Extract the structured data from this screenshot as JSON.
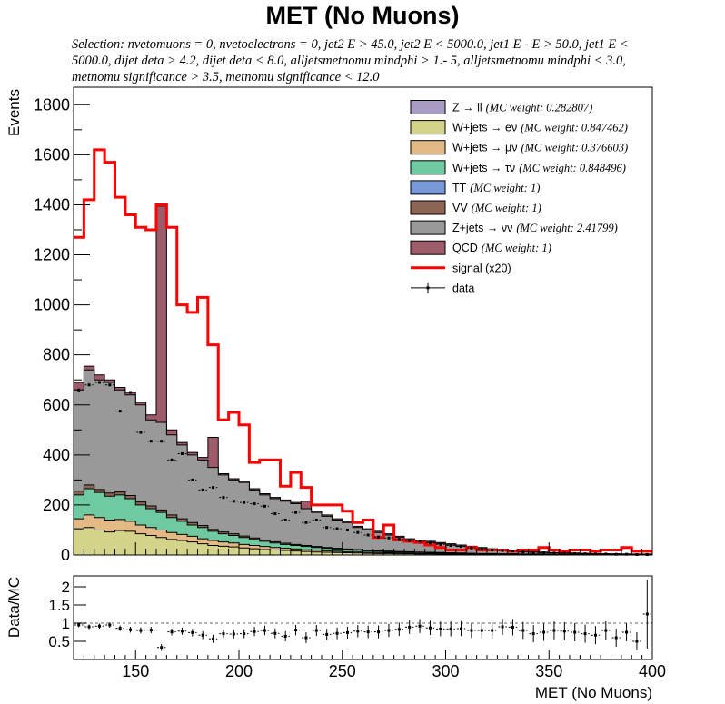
{
  "title": "MET (No Muons)",
  "selection_text": "Selection: nvetomuons = 0, nvetoelectrons = 0, jet2 E > 45.0, jet2 E < 5000.0, jet1 E - E > 50.0, jet1 E < 5000.0, dijet deta > 4.2, dijet deta < 8.0, alljetsmetnomu mindphi > 1.- 5, alljetsmetnomu mindphi < 3.0, metnomu significance > 3.5, metnomu significance < 12.0",
  "chart_data": [
    {
      "type": "stacked-histogram",
      "title": "MET (No Muons)",
      "xlabel": "",
      "ylabel": "Events",
      "xlim": [
        120,
        400
      ],
      "ylim": [
        0,
        1870
      ],
      "yticks": [
        0,
        200,
        400,
        600,
        800,
        1000,
        1200,
        1400,
        1600,
        1800
      ],
      "bin_edges": [
        120,
        125,
        130,
        135,
        140,
        145,
        150,
        155,
        160,
        165,
        170,
        175,
        180,
        185,
        190,
        195,
        200,
        205,
        210,
        215,
        220,
        225,
        230,
        235,
        240,
        245,
        250,
        255,
        260,
        265,
        270,
        275,
        280,
        285,
        290,
        295,
        300,
        305,
        310,
        315,
        320,
        325,
        330,
        335,
        340,
        345,
        350,
        355,
        360,
        365,
        370,
        375,
        380,
        385,
        390,
        395,
        400
      ],
      "legend_position": "top-right",
      "legend": [
        {
          "label": "Z → ll",
          "weight": "(MC weight: 0.282807)",
          "color": "#a99cc4"
        },
        {
          "label": "W+jets → eν",
          "weight": "(MC weight: 0.847462)",
          "color": "#d3d38a"
        },
        {
          "label": "W+jets → μν",
          "weight": "(MC weight: 0.376603)",
          "color": "#e3b985"
        },
        {
          "label": "W+jets → τν",
          "weight": "(MC weight: 0.848496)",
          "color": "#6fc9a1"
        },
        {
          "label": "TT",
          "weight": "(MC weight: 1)",
          "color": "#7b98d6"
        },
        {
          "label": "VV",
          "weight": "(MC weight: 1)",
          "color": "#8d6555"
        },
        {
          "label": "Z+jets → νν",
          "weight": "(MC weight: 2.41799)",
          "color": "#999999"
        },
        {
          "label": "QCD",
          "weight": "(MC weight: 1)",
          "color": "#9e5c6b"
        },
        {
          "label": "signal (x20)",
          "weight": "",
          "color": "#ff0000"
        },
        {
          "label": "data",
          "weight": "",
          "color": "#000000"
        }
      ],
      "stack_cumulative": {
        "W+jets → eν": [
          105,
          110,
          100,
          92,
          98,
          95,
          85,
          78,
          70,
          62,
          58,
          52,
          45,
          38,
          35,
          32,
          28,
          25,
          22,
          20,
          18,
          16,
          14,
          12,
          11,
          10,
          9,
          8,
          7,
          6,
          6,
          5,
          5,
          4,
          4,
          3,
          3,
          3,
          2,
          2,
          2,
          2,
          2,
          1,
          1,
          1,
          1,
          1,
          1,
          1,
          1,
          1,
          1,
          1,
          1,
          1
        ],
        "W+jets → μν": [
          145,
          160,
          150,
          140,
          142,
          135,
          120,
          110,
          100,
          90,
          82,
          75,
          65,
          58,
          52,
          48,
          42,
          38,
          34,
          30,
          27,
          24,
          21,
          19,
          17,
          15,
          13,
          12,
          11,
          10,
          9,
          8,
          7,
          6,
          6,
          5,
          5,
          4,
          4,
          3,
          3,
          3,
          3,
          2,
          2,
          2,
          2,
          2,
          2,
          2,
          1,
          1,
          1,
          1,
          1,
          1
        ],
        "W+jets → τν": [
          240,
          265,
          250,
          235,
          240,
          225,
          200,
          185,
          170,
          150,
          135,
          120,
          110,
          95,
          85,
          78,
          70,
          62,
          55,
          48,
          42,
          38,
          34,
          30,
          27,
          24,
          21,
          19,
          17,
          15,
          13,
          12,
          11,
          10,
          9,
          8,
          7,
          6,
          6,
          5,
          5,
          4,
          4,
          3,
          3,
          3,
          3,
          2,
          2,
          2,
          2,
          2,
          2,
          2,
          1,
          1
        ],
        "VV": [
          255,
          280,
          262,
          248,
          252,
          238,
          212,
          196,
          180,
          160,
          145,
          130,
          118,
          102,
          92,
          85,
          76,
          68,
          60,
          53,
          47,
          42,
          38,
          34,
          30,
          27,
          24,
          22,
          20,
          18,
          16,
          14,
          13,
          12,
          11,
          10,
          9,
          8,
          7,
          6,
          6,
          5,
          5,
          4,
          4,
          4,
          3,
          3,
          3,
          3,
          2,
          2,
          2,
          2,
          2,
          2
        ],
        "Z+jets → νν": [
          660,
          740,
          700,
          690,
          660,
          640,
          600,
          540,
          530,
          480,
          440,
          400,
          380,
          350,
          320,
          300,
          290,
          260,
          240,
          225,
          215,
          205,
          185,
          170,
          155,
          140,
          130,
          110,
          100,
          90,
          80,
          70,
          60,
          55,
          50,
          45,
          40,
          35,
          30,
          25,
          22,
          18,
          15,
          13,
          12,
          10,
          9,
          8,
          7,
          6,
          5,
          5,
          4,
          4,
          3,
          3
        ],
        "QCD": [
          690,
          755,
          720,
          700,
          670,
          650,
          610,
          560,
          1395,
          500,
          450,
          410,
          390,
          470,
          325,
          305,
          295,
          265,
          245,
          230,
          220,
          210,
          215,
          175,
          160,
          145,
          135,
          115,
          105,
          95,
          85,
          75,
          65,
          60,
          55,
          50,
          45,
          40,
          35,
          30,
          25,
          20,
          18,
          15,
          14,
          12,
          10,
          9,
          8,
          7,
          6,
          5,
          5,
          4,
          4,
          4
        ]
      },
      "signal_x20": [
        1270,
        1420,
        1620,
        1570,
        1430,
        1360,
        1310,
        1300,
        1400,
        1310,
        1000,
        970,
        1030,
        840,
        540,
        570,
        520,
        370,
        380,
        380,
        275,
        330,
        270,
        200,
        200,
        200,
        175,
        130,
        140,
        70,
        120,
        60,
        55,
        50,
        40,
        30,
        20,
        20,
        30,
        20,
        20,
        20,
        15,
        20,
        20,
        30,
        20,
        15,
        20,
        20,
        15,
        20,
        20,
        30,
        15,
        15
      ],
      "data": [
        660,
        680,
        690,
        680,
        575,
        650,
        490,
        455,
        455,
        380,
        405,
        300,
        260,
        270,
        230,
        215,
        210,
        205,
        195,
        165,
        140,
        170,
        130,
        140,
        110,
        105,
        100,
        90,
        80,
        72,
        68,
        62,
        58,
        55,
        48,
        42,
        38,
        34,
        28,
        24,
        20,
        18,
        16,
        12,
        10,
        9,
        8,
        7,
        6,
        5,
        4,
        4,
        3,
        3,
        2,
        2
      ]
    },
    {
      "type": "scatter",
      "title": "",
      "xlabel": "MET (No Muons)",
      "ylabel": "Data/MC",
      "xlim": [
        120,
        400
      ],
      "ylim": [
        0,
        2.3
      ],
      "yticks": [
        0.5,
        1,
        1.5,
        2
      ],
      "xticks": [
        150,
        200,
        250,
        300,
        350,
        400
      ],
      "reference_line": 1,
      "x": [
        122.5,
        127.5,
        132.5,
        137.5,
        142.5,
        147.5,
        152.5,
        157.5,
        162.5,
        167.5,
        172.5,
        177.5,
        182.5,
        187.5,
        192.5,
        197.5,
        202.5,
        207.5,
        212.5,
        217.5,
        222.5,
        227.5,
        232.5,
        237.5,
        242.5,
        247.5,
        252.5,
        257.5,
        262.5,
        267.5,
        272.5,
        277.5,
        282.5,
        287.5,
        292.5,
        297.5,
        302.5,
        307.5,
        312.5,
        317.5,
        322.5,
        327.5,
        332.5,
        337.5,
        342.5,
        347.5,
        352.5,
        357.5,
        362.5,
        367.5,
        372.5,
        377.5,
        382.5,
        387.5,
        392.5,
        397.5
      ],
      "y": [
        0.95,
        0.9,
        0.92,
        0.95,
        0.86,
        0.82,
        0.8,
        0.81,
        0.33,
        0.76,
        0.78,
        0.74,
        0.67,
        0.57,
        0.71,
        0.7,
        0.71,
        0.77,
        0.8,
        0.72,
        0.64,
        0.81,
        0.6,
        0.8,
        0.69,
        0.72,
        0.74,
        0.78,
        0.76,
        0.76,
        0.8,
        0.83,
        0.89,
        0.92,
        0.87,
        0.84,
        0.84,
        0.85,
        0.8,
        0.8,
        0.8,
        0.9,
        0.89,
        0.8,
        0.71,
        0.75,
        0.8,
        0.78,
        0.75,
        0.71,
        0.67,
        0.8,
        0.6,
        0.75,
        0.5,
        1.25
      ]
    }
  ]
}
